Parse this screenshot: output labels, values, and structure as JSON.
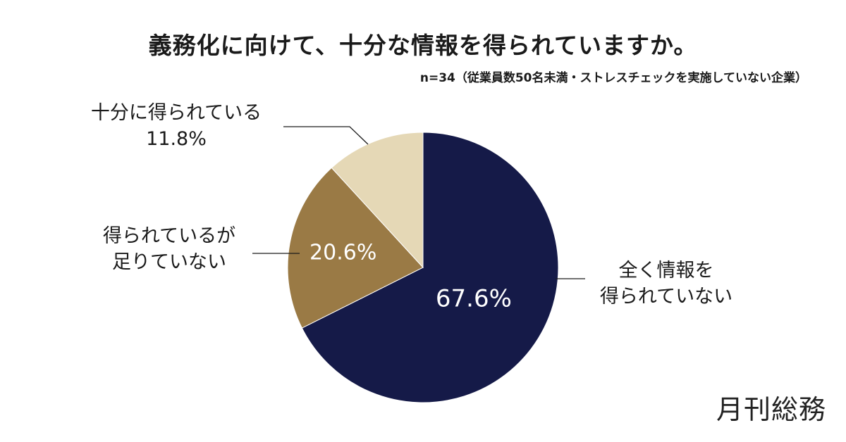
{
  "title": "義務化に向けて、十分な情報を得られていますか。",
  "subtitle": "n=34（従業員数50名未満・ストレスチェックを実施していない企業）",
  "logo_text": "月刊総務",
  "labels": {
    "enough_line1": "十分に得られている",
    "enough_line2": "11.8%",
    "notenough_line1": "得られているが",
    "notenough_line2": "足りていない",
    "none_line1": "全く情報を",
    "none_line2": "得られていない"
  },
  "chart_data": {
    "type": "pie",
    "start_angle_deg": 0,
    "direction": "clockwise",
    "slices": [
      {
        "key": "none",
        "label": "全く情報を得られていない",
        "value": 67.6,
        "display": "67.6%",
        "color": "#151a48",
        "text_color": "#ffffff",
        "inside_label": true
      },
      {
        "key": "notenough",
        "label": "得られているが足りていない",
        "value": 20.6,
        "display": "20.6%",
        "color": "#9a7a45",
        "text_color": "#ffffff",
        "inside_label": true
      },
      {
        "key": "enough",
        "label": "十分に得られている",
        "value": 11.8,
        "display": "11.8%",
        "color": "#e5d8b6",
        "text_color": "#1a1a1a",
        "inside_label": false
      }
    ]
  }
}
